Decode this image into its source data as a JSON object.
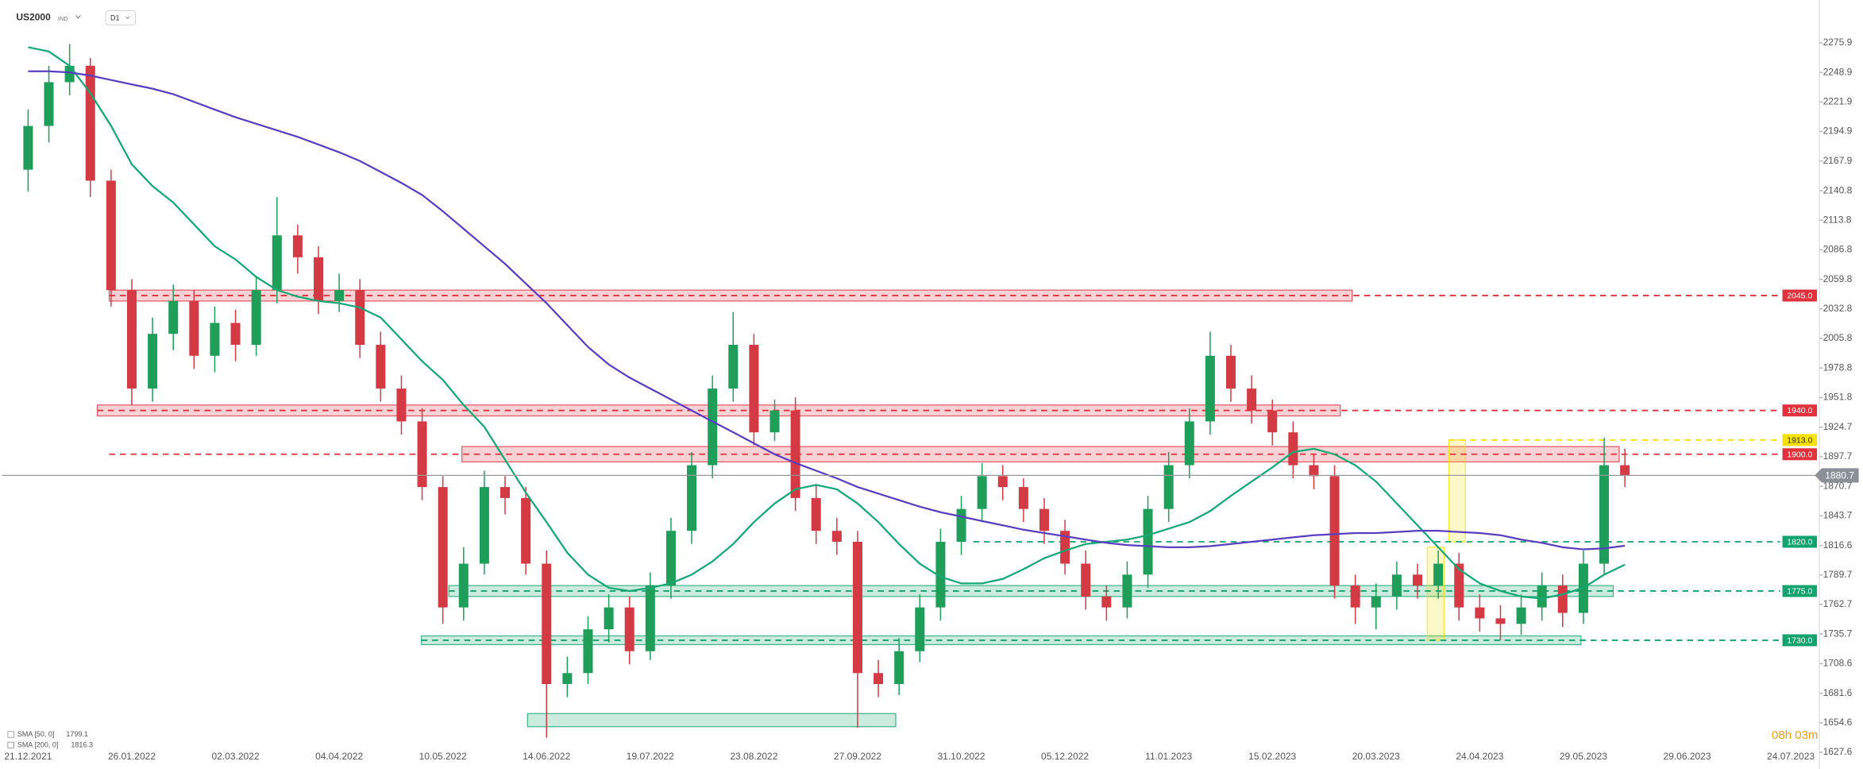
{
  "chart_data": {
    "type": "candlestick",
    "title": "US2000",
    "subtitle": "IND",
    "timeframe": "D1",
    "countdown": "08h 03m",
    "up_color": "#1f9e5a",
    "down_color": "#d33a44",
    "categories": [
      "21.12.2021",
      null,
      null,
      null,
      null,
      "26.01.2022",
      null,
      null,
      null,
      null,
      "02.03.2022",
      null,
      null,
      null,
      null,
      "04.04.2022",
      null,
      null,
      null,
      null,
      "10.05.2022",
      null,
      null,
      null,
      null,
      "14.06.2022",
      null,
      null,
      null,
      null,
      "19.07.2022",
      null,
      null,
      null,
      null,
      "23.08.2022",
      null,
      null,
      null,
      null,
      "27.09.2022",
      null,
      null,
      null,
      null,
      "31.10.2022",
      null,
      null,
      null,
      null,
      "05.12.2022",
      null,
      null,
      null,
      null,
      "11.01.2023",
      null,
      null,
      null,
      null,
      "15.02.2023",
      null,
      null,
      null,
      null,
      "20.03.2023",
      null,
      null,
      null,
      null,
      "24.04.2023",
      null,
      null,
      null,
      null,
      "29.05.2023",
      null,
      null,
      null,
      null,
      "29.06.2023",
      null,
      null,
      null,
      null,
      "24.07.2023"
    ],
    "open": [
      2160,
      2200,
      2240,
      2255,
      2150,
      2050,
      1960,
      2010,
      2040,
      1990,
      2020,
      2000,
      2050,
      2100,
      2080,
      2040,
      2050,
      2000,
      1960,
      1930,
      1870,
      1760,
      1800,
      1870,
      1860,
      1800,
      1690,
      1700,
      1740,
      1760,
      1720,
      1780,
      1830,
      1890,
      1960,
      2000,
      1920,
      1940,
      1860,
      1830,
      1820,
      1700,
      1690,
      1720,
      1760,
      1820,
      1850,
      1880,
      1870,
      1850,
      1830,
      1800,
      1770,
      1760,
      1790,
      1850,
      1890,
      1930,
      1990,
      1960,
      1940,
      1920,
      1890,
      1880,
      1780,
      1760,
      1770,
      1790,
      1780,
      1800,
      1760,
      1750,
      1745,
      1760,
      1780,
      1755,
      1800,
      1890,
      null,
      null,
      null,
      null,
      null,
      null,
      null,
      null
    ],
    "high": [
      2215,
      2255,
      2275,
      2262,
      2160,
      2060,
      2025,
      2055,
      2050,
      2035,
      2032,
      2062,
      2135,
      2110,
      2090,
      2065,
      2060,
      2012,
      1972,
      1942,
      1880,
      1815,
      1885,
      1880,
      1870,
      1812,
      1715,
      1752,
      1772,
      1770,
      1792,
      1842,
      1902,
      1972,
      2030,
      2010,
      1950,
      1952,
      1872,
      1842,
      1830,
      1712,
      1732,
      1772,
      1832,
      1862,
      1892,
      1890,
      1878,
      1860,
      1840,
      1812,
      1780,
      1802,
      1862,
      1902,
      1942,
      2012,
      2000,
      1972,
      1950,
      1930,
      1900,
      1890,
      1790,
      1782,
      1802,
      1800,
      1812,
      1810,
      1772,
      1762,
      1772,
      1792,
      1790,
      1812,
      1915,
      1905,
      null,
      null,
      null,
      null,
      null,
      null,
      null,
      null
    ],
    "low": [
      2140,
      2185,
      2228,
      2135,
      2035,
      1945,
      1948,
      1995,
      1978,
      1975,
      1985,
      1990,
      2038,
      2065,
      2028,
      2030,
      1988,
      1948,
      1918,
      1858,
      1745,
      1748,
      1790,
      1845,
      1790,
      1641,
      1678,
      1690,
      1728,
      1708,
      1712,
      1768,
      1818,
      1878,
      1948,
      1908,
      1912,
      1848,
      1818,
      1808,
      1650,
      1678,
      1680,
      1710,
      1748,
      1808,
      1838,
      1858,
      1838,
      1818,
      1790,
      1758,
      1748,
      1750,
      1778,
      1838,
      1878,
      1918,
      1948,
      1928,
      1908,
      1878,
      1868,
      1768,
      1745,
      1740,
      1758,
      1768,
      1768,
      1748,
      1738,
      1730,
      1735,
      1748,
      1742,
      1745,
      1790,
      1870,
      null,
      null,
      null,
      null,
      null,
      null,
      null,
      null
    ],
    "close": [
      2200,
      2240,
      2255,
      2150,
      2050,
      1960,
      2010,
      2040,
      1990,
      2020,
      2000,
      2050,
      2100,
      2080,
      2040,
      2050,
      2000,
      1960,
      1930,
      1870,
      1760,
      1800,
      1870,
      1860,
      1800,
      1690,
      1700,
      1740,
      1760,
      1720,
      1780,
      1830,
      1890,
      1960,
      2000,
      1920,
      1940,
      1860,
      1830,
      1820,
      1700,
      1690,
      1720,
      1760,
      1820,
      1850,
      1880,
      1870,
      1850,
      1830,
      1800,
      1770,
      1760,
      1790,
      1850,
      1890,
      1930,
      1990,
      1960,
      1940,
      1920,
      1890,
      1880,
      1780,
      1760,
      1770,
      1790,
      1780,
      1800,
      1760,
      1750,
      1745,
      1760,
      1780,
      1755,
      1800,
      1890,
      1880.7,
      null,
      null,
      null,
      null,
      null,
      null,
      null,
      null
    ],
    "series": [
      {
        "name": "SMA [50, 0]",
        "color": "#14a874",
        "values": [
          2272,
          2268,
          2255,
          2230,
          2200,
          2165,
          2145,
          2130,
          2110,
          2090,
          2078,
          2062,
          2050,
          2044,
          2040,
          2038,
          2034,
          2025,
          2005,
          1985,
          1968,
          1945,
          1925,
          1895,
          1865,
          1838,
          1810,
          1790,
          1778,
          1775,
          1778,
          1782,
          1790,
          1802,
          1818,
          1838,
          1855,
          1868,
          1872,
          1868,
          1855,
          1838,
          1818,
          1800,
          1788,
          1782,
          1782,
          1786,
          1795,
          1805,
          1812,
          1818,
          1820,
          1822,
          1826,
          1832,
          1838,
          1848,
          1862,
          1875,
          1888,
          1902,
          1905,
          1900,
          1890,
          1875,
          1855,
          1835,
          1815,
          1795,
          1782,
          1775,
          1770,
          1768,
          1772,
          1778,
          1790,
          1799.1,
          null,
          null,
          null,
          null,
          null,
          null,
          null,
          null
        ]
      },
      {
        "name": "SMA [200, 0]",
        "color": "#5a3ec2",
        "values": [
          2250,
          2250,
          2249,
          2246,
          2242,
          2238,
          2234,
          2229,
          2222,
          2215,
          2208,
          2202,
          2196,
          2190,
          2183,
          2176,
          2168,
          2158,
          2148,
          2137,
          2122,
          2106,
          2090,
          2074,
          2056,
          2038,
          2018,
          1998,
          1982,
          1970,
          1960,
          1950,
          1940,
          1930,
          1920,
          1910,
          1900,
          1892,
          1885,
          1878,
          1870,
          1864,
          1858,
          1852,
          1847,
          1843,
          1839,
          1835,
          1831,
          1828,
          1825,
          1822,
          1819,
          1817,
          1816,
          1815,
          1815,
          1816,
          1818,
          1820,
          1822,
          1824,
          1826,
          1827,
          1828,
          1828,
          1829,
          1830,
          1830,
          1829,
          1828,
          1826,
          1822,
          1819,
          1815,
          1813,
          1814,
          1816.3,
          null,
          null,
          null,
          null,
          null,
          null,
          null,
          null
        ]
      }
    ],
    "levels": [
      {
        "value": 2045,
        "label": "2045.0",
        "color": "#e0313d"
      },
      {
        "value": 1940,
        "label": "1940.0",
        "color": "#e0313d"
      },
      {
        "value": 1913,
        "label": "1913.0",
        "color": "#f5e100"
      },
      {
        "value": 1900,
        "label": "1900.0",
        "color": "#e0313d"
      },
      {
        "value": 1820,
        "label": "1820.0",
        "color": "#13a36f"
      },
      {
        "value": 1775,
        "label": "1775.0",
        "color": "#13a36f"
      },
      {
        "value": 1730,
        "label": "1730.0",
        "color": "#13a36f"
      }
    ],
    "zones": [
      {
        "low": 2040,
        "high": 2050,
        "color": "#e0313d"
      },
      {
        "low": 1935,
        "high": 1945,
        "color": "#e0313d"
      },
      {
        "low": 1893,
        "high": 1907,
        "color": "#e0313d"
      },
      {
        "low": 1770,
        "high": 1780,
        "color": "#13a36f"
      },
      {
        "low": 1726,
        "high": 1734,
        "color": "#13a36f"
      },
      {
        "low": 1651,
        "high": 1663,
        "color": "#13a36f"
      },
      {
        "low": 1730,
        "high": 1815,
        "color": "#f5e100"
      },
      {
        "low": 1820,
        "high": 1913,
        "color": "#f5e100"
      }
    ],
    "ylim": [
      1617.8,
      2315.1
    ],
    "yticks": [
      2275.9,
      2248.9,
      2221.9,
      2194.9,
      2167.9,
      2140.8,
      2113.8,
      2086.8,
      2059.8,
      2032.8,
      2005.8,
      1978.8,
      1951.8,
      1924.7,
      1897.7,
      1870.7,
      1843.7,
      1816.6,
      1789.7,
      1762.7,
      1735.7,
      1708.6,
      1681.6,
      1654.6,
      1627.6
    ]
  }
}
